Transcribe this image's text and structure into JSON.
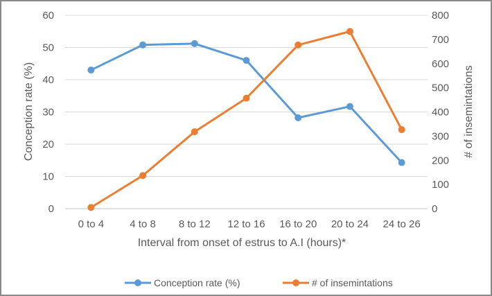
{
  "chart_data": {
    "type": "line",
    "categories": [
      "0 to 4",
      "4 to 8",
      "8 to 12",
      "12 to 16",
      "16 to 20",
      "20 to 24",
      "24 to 26"
    ],
    "series": [
      {
        "name": "Conception rate (%)",
        "axis": "left",
        "color": "#5b9bd5",
        "values": [
          43,
          50.8,
          51.2,
          46,
          28.2,
          31.7,
          14.3
        ]
      },
      {
        "name": "# of insemintations",
        "axis": "right",
        "color": "#ed7d31",
        "values": [
          5,
          137,
          318,
          457,
          677,
          733,
          327
        ]
      }
    ],
    "xlabel": "Interval from onset of estrus to A.I (hours)*",
    "ylabel": "Conception rate (%)",
    "y2label": "# of insemintations",
    "ylim": [
      0,
      60
    ],
    "y2lim": [
      0,
      800
    ],
    "yticks": [
      "0",
      "10",
      "20",
      "30",
      "40",
      "50",
      "60"
    ],
    "y2ticks": [
      "0",
      "100",
      "200",
      "300",
      "400",
      "500",
      "600",
      "700",
      "800"
    ],
    "grid": true,
    "legend": "bottom"
  }
}
